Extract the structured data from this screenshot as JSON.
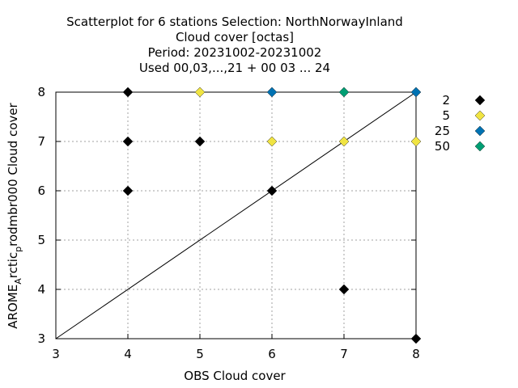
{
  "chart_data": {
    "type": "scatter",
    "title_lines": [
      "Scatterplot for    6 stations Selection: NorthNorwayInland",
      "Cloud cover [octas]",
      "Period: 20231002-20231002",
      "Used  00,03,...,21  + 00 03 ... 24"
    ],
    "xlabel": "OBS Cloud cover",
    "ylabel": {
      "base": "AROME",
      "sub": "A",
      "mid": "rctic",
      "sub2": "p",
      "tail": "rodmbr000 Cloud cover"
    },
    "xlim": [
      3,
      8
    ],
    "ylim": [
      3,
      8
    ],
    "xticks": [
      "3",
      "4",
      "5",
      "6",
      "7",
      "8"
    ],
    "yticks": [
      "3",
      "4",
      "5",
      "6",
      "7",
      "8"
    ],
    "grid": true,
    "legend_position": "right",
    "series": [
      {
        "name": "2",
        "color": "#000000",
        "points": [
          [
            4,
            8
          ],
          [
            4,
            7
          ],
          [
            5,
            7
          ],
          [
            4,
            6
          ],
          [
            6,
            6
          ],
          [
            7,
            4
          ],
          [
            8,
            3
          ]
        ]
      },
      {
        "name": "5",
        "color": "#f0e442",
        "points": [
          [
            5,
            8
          ],
          [
            6,
            7
          ],
          [
            7,
            7
          ],
          [
            8,
            7
          ]
        ]
      },
      {
        "name": "25",
        "color": "#0072b2",
        "points": [
          [
            6,
            8
          ],
          [
            8,
            8
          ]
        ]
      },
      {
        "name": "50",
        "color": "#009e73",
        "points": [
          [
            7,
            8
          ]
        ]
      }
    ]
  }
}
